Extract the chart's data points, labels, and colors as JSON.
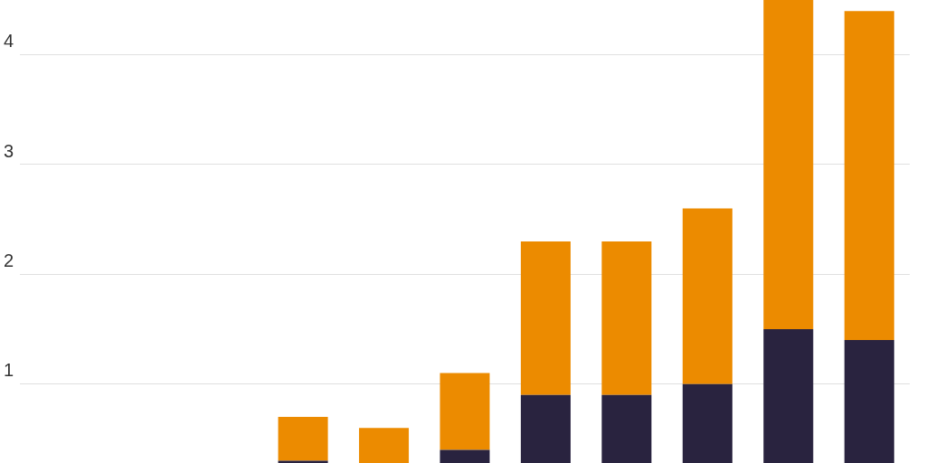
{
  "chart_data": {
    "type": "bar",
    "stacked": true,
    "categories": [
      null,
      null,
      null,
      null,
      null,
      null,
      null,
      null,
      null,
      null,
      null
    ],
    "series": [
      {
        "color": "#29233f",
        "values": [
          null,
          null,
          null,
          0.3,
          null,
          0.4,
          0.9,
          0.9,
          1.0,
          1.5,
          1.4
        ]
      },
      {
        "color": "#ec8b00",
        "values": [
          null,
          null,
          null,
          0.4,
          0.6,
          0.7,
          1.4,
          1.4,
          1.6,
          3.0,
          3.0
        ]
      }
    ],
    "ylim": [
      0.28,
      4.5
    ],
    "yticks": [
      1,
      2,
      3,
      4
    ],
    "grid": "y",
    "legend": false,
    "tick_labels": "y"
  }
}
